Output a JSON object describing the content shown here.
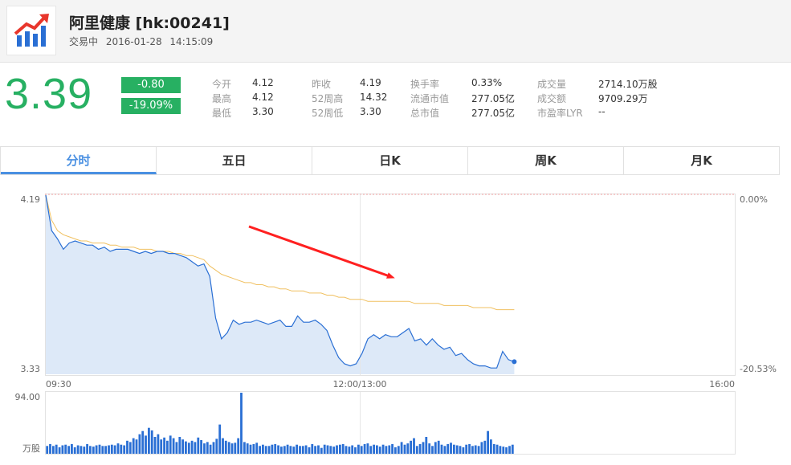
{
  "header": {
    "title": "阿里健康 [hk:00241]",
    "status": "交易中",
    "date": "2016-01-28",
    "time": "14:15:09",
    "logo_icon": "rising-chart-icon"
  },
  "quote": {
    "price": "3.39",
    "change": "-0.80",
    "change_pct": "-19.09%",
    "color_down": "#27b062"
  },
  "stats": [
    {
      "label": "今开",
      "value": "4.12"
    },
    {
      "label": "最高",
      "value": "4.12"
    },
    {
      "label": "最低",
      "value": "3.30"
    },
    {
      "label": "昨收",
      "value": "4.19"
    },
    {
      "label": "52周高",
      "value": "14.32"
    },
    {
      "label": "52周低",
      "value": "3.30"
    },
    {
      "label": "换手率",
      "value": "0.33%"
    },
    {
      "label": "流通市值",
      "value": "277.05亿"
    },
    {
      "label": "总市值",
      "value": "277.05亿"
    },
    {
      "label": "成交量",
      "value": "2714.10万股"
    },
    {
      "label": "成交额",
      "value": "9709.29万"
    },
    {
      "label": "市盈率LYR",
      "value": "--"
    }
  ],
  "tabs": [
    "分时",
    "五日",
    "日K",
    "周K",
    "月K"
  ],
  "active_tab": 0,
  "chart_data": [
    {
      "type": "line",
      "title": "",
      "y_labels": {
        "top": "4.19",
        "bottom": "3.33"
      },
      "y_right_labels": {
        "top": "0.00%",
        "bottom": "-20.53%"
      },
      "ylim": [
        3.33,
        4.19
      ],
      "x_labels": [
        "09:30",
        "12:00/13:00",
        "16:00"
      ],
      "session_fraction_elapsed": 0.68,
      "series": [
        {
          "role": "price",
          "color": "#2a6fd4",
          "fill": "#dde9f8",
          "values": [
            4.19,
            4.02,
            3.98,
            3.93,
            3.96,
            3.97,
            3.96,
            3.95,
            3.95,
            3.93,
            3.94,
            3.92,
            3.93,
            3.93,
            3.93,
            3.92,
            3.91,
            3.92,
            3.91,
            3.92,
            3.92,
            3.91,
            3.91,
            3.9,
            3.89,
            3.87,
            3.85,
            3.86,
            3.8,
            3.6,
            3.5,
            3.53,
            3.59,
            3.57,
            3.58,
            3.58,
            3.59,
            3.58,
            3.57,
            3.58,
            3.59,
            3.56,
            3.56,
            3.61,
            3.58,
            3.58,
            3.59,
            3.57,
            3.54,
            3.47,
            3.41,
            3.38,
            3.37,
            3.38,
            3.43,
            3.5,
            3.52,
            3.5,
            3.52,
            3.51,
            3.51,
            3.53,
            3.55,
            3.49,
            3.5,
            3.47,
            3.5,
            3.47,
            3.45,
            3.46,
            3.42,
            3.43,
            3.4,
            3.38,
            3.37,
            3.37,
            3.36,
            3.36,
            3.44,
            3.4,
            3.39
          ]
        },
        {
          "role": "average",
          "color": "#f0c060",
          "values": [
            4.19,
            4.07,
            4.02,
            4.0,
            3.99,
            3.98,
            3.97,
            3.97,
            3.96,
            3.96,
            3.96,
            3.95,
            3.95,
            3.94,
            3.94,
            3.94,
            3.93,
            3.93,
            3.93,
            3.92,
            3.92,
            3.92,
            3.91,
            3.91,
            3.9,
            3.9,
            3.89,
            3.88,
            3.85,
            3.83,
            3.81,
            3.8,
            3.79,
            3.78,
            3.77,
            3.77,
            3.76,
            3.76,
            3.75,
            3.75,
            3.74,
            3.74,
            3.73,
            3.73,
            3.73,
            3.72,
            3.72,
            3.72,
            3.71,
            3.71,
            3.7,
            3.7,
            3.69,
            3.69,
            3.69,
            3.68,
            3.68,
            3.68,
            3.68,
            3.68,
            3.68,
            3.68,
            3.68,
            3.67,
            3.67,
            3.67,
            3.67,
            3.67,
            3.66,
            3.66,
            3.66,
            3.66,
            3.66,
            3.65,
            3.65,
            3.65,
            3.65,
            3.64,
            3.64,
            3.64,
            3.64
          ]
        }
      ],
      "annotation": "red-down-arrow"
    },
    {
      "type": "bar",
      "title": "",
      "y_labels": {
        "top": "94.00",
        "bottom": "万股"
      },
      "ylim": [
        0,
        94
      ],
      "color": "#2a6fd4",
      "values": [
        12,
        15,
        12,
        14,
        10,
        13,
        14,
        12,
        15,
        10,
        13,
        12,
        11,
        15,
        12,
        11,
        13,
        14,
        12,
        12,
        13,
        14,
        13,
        16,
        14,
        13,
        20,
        18,
        24,
        22,
        30,
        35,
        28,
        40,
        36,
        26,
        30,
        22,
        25,
        20,
        28,
        24,
        18,
        26,
        22,
        19,
        17,
        20,
        18,
        25,
        21,
        16,
        18,
        14,
        18,
        23,
        45,
        24,
        20,
        18,
        16,
        17,
        24,
        94,
        18,
        16,
        14,
        15,
        17,
        12,
        14,
        12,
        12,
        14,
        15,
        13,
        11,
        12,
        14,
        12,
        11,
        14,
        12,
        12,
        13,
        10,
        15,
        12,
        13,
        9,
        14,
        13,
        12,
        11,
        13,
        14,
        15,
        12,
        11,
        13,
        10,
        14,
        12,
        15,
        16,
        12,
        14,
        13,
        11,
        14,
        12,
        13,
        15,
        10,
        12,
        18,
        14,
        16,
        20,
        24,
        12,
        15,
        18,
        26,
        16,
        12,
        18,
        20,
        14,
        12,
        15,
        17,
        14,
        13,
        12,
        10,
        14,
        15,
        12,
        13,
        12,
        18,
        20,
        35,
        22,
        15,
        14,
        12,
        11,
        10,
        12,
        14
      ]
    }
  ]
}
